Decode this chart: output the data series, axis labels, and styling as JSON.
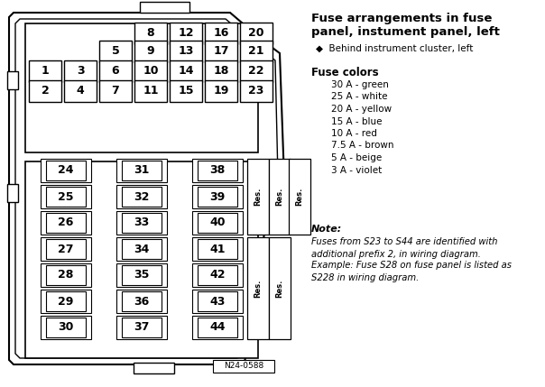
{
  "title_line1": "Fuse arrangements in fuse",
  "title_line2": "panel, instument panel, left",
  "subtitle": "◆  Behind instrument cluster, left",
  "fuse_colors_title": "Fuse colors",
  "fuse_colors": [
    "30 A - green",
    "25 A - white",
    "20 A - yellow",
    "15 A - blue",
    "10 A - red",
    "7.5 A - brown",
    "5 A - beige",
    "3 A - violet"
  ],
  "note_title": "Note:",
  "note_body": "Fuses from S23 to S44 are identified with\nadditional prefix 2, in wiring diagram.",
  "note_example": "Example: Fuse S28 on fuse panel is listed as\nS228 in wiring diagram.",
  "diagram_id": "N24-0588",
  "row1_nums": [
    "8",
    "12",
    "16",
    "20"
  ],
  "row2_nums": [
    "5",
    "9",
    "13",
    "17",
    "21"
  ],
  "row3_nums": [
    "1",
    "3",
    "6",
    "10",
    "14",
    "18",
    "22"
  ],
  "row4_nums": [
    "2",
    "4",
    "7",
    "11",
    "15",
    "19",
    "23"
  ],
  "lower_col1": [
    "24",
    "25",
    "26",
    "27",
    "28",
    "29",
    "30"
  ],
  "lower_col2": [
    "31",
    "32",
    "33",
    "34",
    "35",
    "36",
    "37"
  ],
  "lower_col3": [
    "38",
    "39",
    "40",
    "41",
    "42",
    "43",
    "44"
  ]
}
